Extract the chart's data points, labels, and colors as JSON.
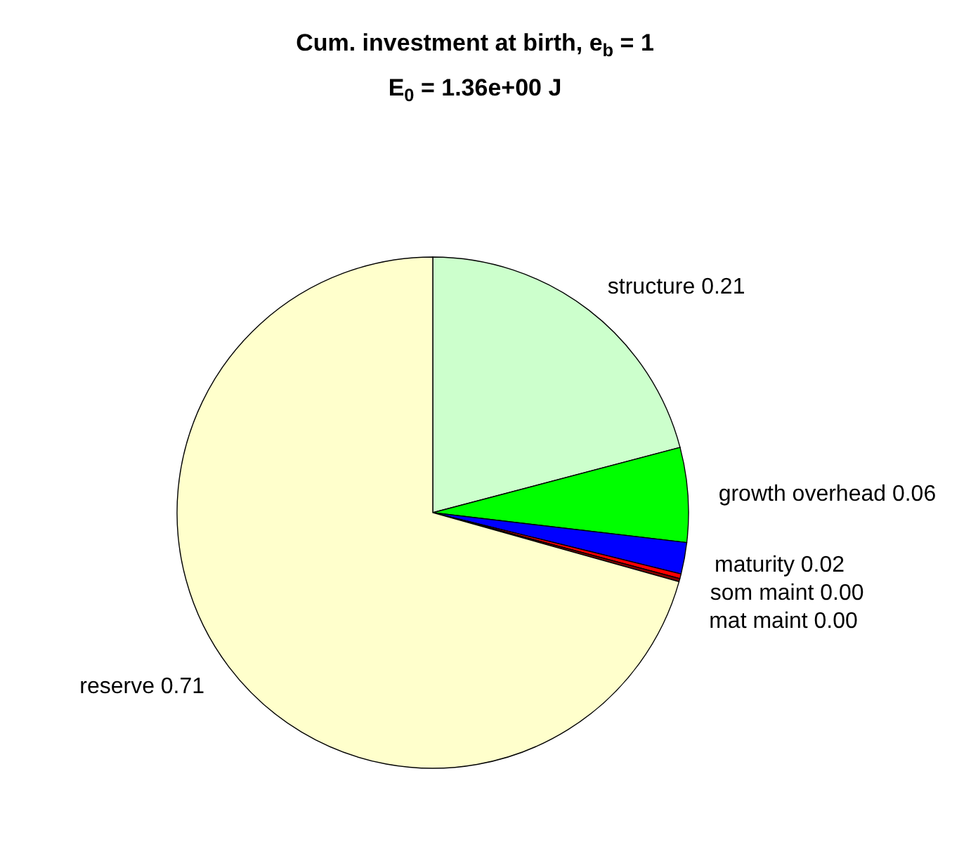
{
  "chart_data": {
    "type": "pie",
    "title": "Cum. investment at birth, e$_{b}$ = 1",
    "subtitle": "E$_{0}$ = 1.36e+00 J",
    "categories": [
      "structure",
      "growth overhead",
      "maturity",
      "som maint",
      "mat maint",
      "reserve"
    ],
    "values": [
      0.21,
      0.06,
      0.02,
      0.003,
      0.002,
      0.71
    ],
    "value_labels": [
      "0.21",
      "0.06",
      "0.02",
      "0.00",
      "0.00",
      "0.71"
    ],
    "colors": [
      "#ccffcc",
      "#00ff00",
      "#0000ff",
      "#ff0000",
      "#800000",
      "#ffffcc"
    ]
  }
}
